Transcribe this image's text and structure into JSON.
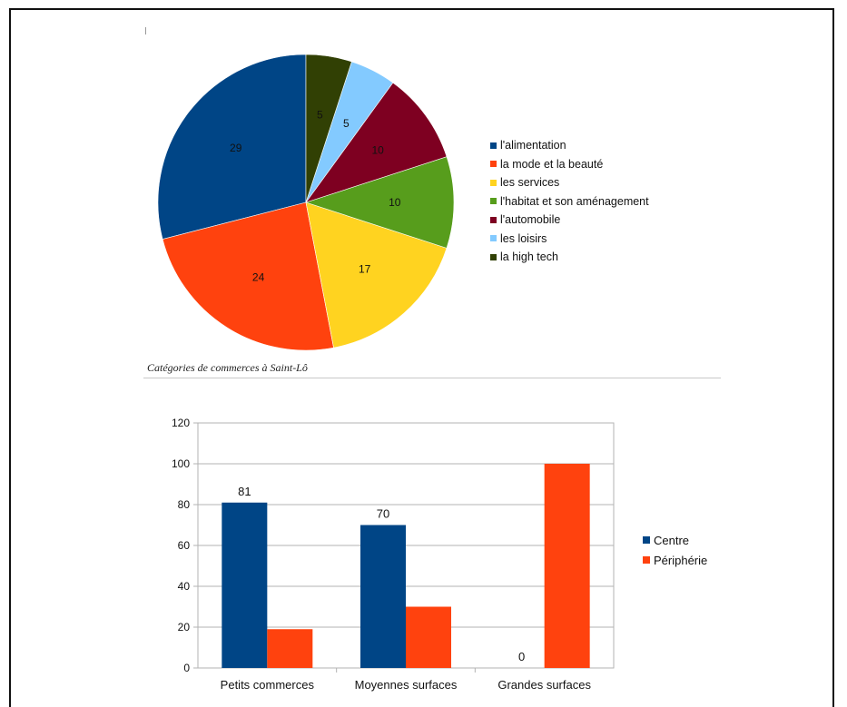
{
  "chart_data": [
    {
      "type": "pie",
      "title": "Catégories de commerces à Saint-Lô",
      "labels": [
        "l'alimentation",
        "la mode et la beauté",
        "les services",
        "l'habitat et son aménagement",
        "l'automobile",
        "les loisirs",
        "la high tech"
      ],
      "values": [
        29,
        24,
        17,
        10,
        10,
        5,
        5
      ],
      "colors": [
        "#004586",
        "#ff420e",
        "#ffd320",
        "#579d1c",
        "#7e0021",
        "#83caff",
        "#314004"
      ],
      "legend": "right"
    },
    {
      "type": "bar",
      "categories": [
        "Petits commerces",
        "Moyennes surfaces",
        "Grandes surfaces"
      ],
      "series": [
        {
          "name": "Centre",
          "values": [
            81,
            70,
            0
          ],
          "color": "#004586",
          "labels": [
            "81",
            "70",
            "0"
          ]
        },
        {
          "name": "Périphérie",
          "values": [
            19,
            30,
            100
          ],
          "color": "#ff420e"
        }
      ],
      "ylim": [
        0,
        120
      ],
      "yticks": [
        0,
        20,
        40,
        60,
        80,
        100,
        120
      ],
      "grid": true,
      "legend": "right"
    }
  ]
}
